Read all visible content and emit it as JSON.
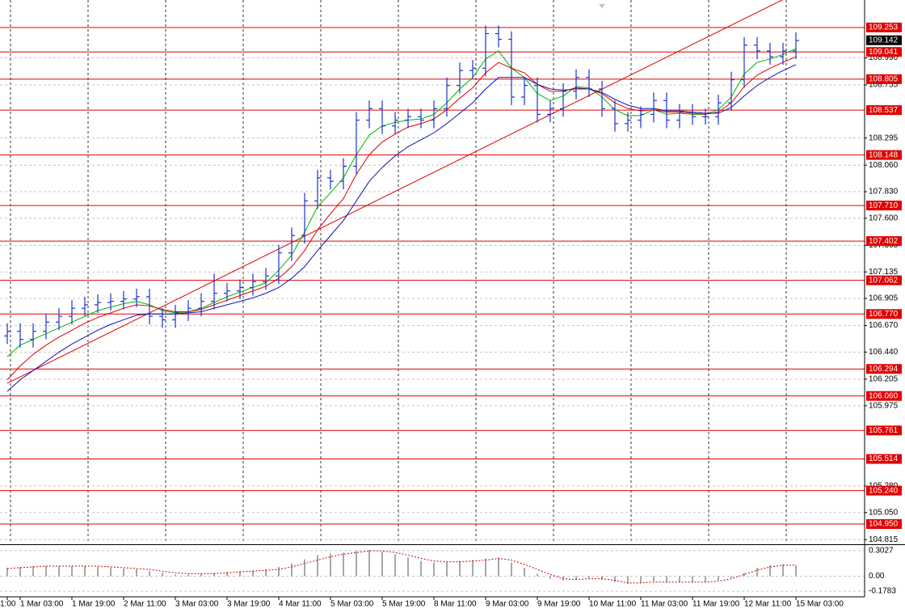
{
  "chart_data": {
    "type": "ohlc",
    "categories": [
      "1:00",
      "1 Mar 03:00",
      null,
      null,
      null,
      "1 Mar 19:00",
      null,
      null,
      null,
      "2 Mar 11:00",
      null,
      null,
      null,
      "3 Mar 03:00",
      null,
      null,
      null,
      "3 Mar 19:00",
      null,
      null,
      null,
      "4 Mar 11:00",
      null,
      null,
      null,
      "5 Mar 03:00",
      null,
      null,
      null,
      "5 Mar 19:00",
      null,
      null,
      null,
      "8 Mar 11:00",
      null,
      null,
      null,
      "9 Mar 03:00",
      null,
      null,
      null,
      "9 Mar 19:00",
      null,
      null,
      null,
      "10 Mar 11:00",
      null,
      null,
      null,
      "11 Mar 03:00",
      null,
      null,
      null,
      "11 Mar 19:00",
      null,
      null,
      null,
      "12 Mar 11:00",
      null,
      null,
      null,
      "15 Mar 03:00"
    ],
    "open": [
      106.58,
      106.62,
      106.55,
      106.62,
      106.7,
      106.75,
      106.82,
      106.85,
      106.87,
      106.88,
      106.9,
      106.92,
      106.75,
      106.72,
      106.78,
      106.82,
      106.88,
      106.95,
      106.97,
      107.0,
      107.05,
      107.1,
      107.3,
      107.45,
      107.75,
      107.95,
      107.92,
      108.05,
      108.45,
      108.55,
      108.4,
      108.45,
      108.48,
      108.45,
      108.55,
      108.75,
      108.88,
      108.9,
      109.2,
      109.15,
      108.65,
      108.75,
      108.5,
      108.55,
      108.7,
      108.82,
      108.72,
      108.55,
      108.42,
      108.45,
      108.5,
      108.62,
      108.45,
      108.52,
      108.48,
      108.48,
      108.6,
      108.8,
      109.1,
      109.05,
      109.0,
      109.05
    ],
    "high": [
      106.69,
      106.69,
      106.69,
      106.77,
      106.82,
      106.89,
      106.92,
      106.94,
      106.95,
      106.97,
      106.99,
      106.99,
      106.82,
      106.85,
      106.89,
      106.95,
      107.12,
      107.04,
      107.07,
      107.12,
      107.17,
      107.37,
      107.52,
      107.82,
      108.02,
      108.02,
      108.12,
      108.52,
      108.62,
      108.62,
      108.52,
      108.55,
      108.55,
      108.62,
      108.82,
      108.95,
      108.97,
      109.27,
      109.27,
      109.22,
      108.82,
      108.82,
      108.62,
      108.77,
      108.89,
      108.89,
      108.79,
      108.62,
      108.52,
      108.57,
      108.69,
      108.69,
      108.59,
      108.59,
      108.55,
      108.67,
      108.87,
      109.17,
      109.17,
      109.12,
      109.12,
      109.21
    ],
    "low": [
      106.51,
      106.48,
      106.48,
      106.55,
      106.63,
      106.68,
      106.75,
      106.78,
      106.8,
      106.81,
      106.83,
      106.68,
      106.65,
      106.65,
      106.71,
      106.75,
      106.81,
      106.88,
      106.9,
      106.93,
      106.98,
      107.03,
      107.23,
      107.38,
      107.68,
      107.85,
      107.85,
      107.98,
      108.38,
      108.33,
      108.33,
      108.38,
      108.38,
      108.38,
      108.48,
      108.68,
      108.81,
      108.83,
      109.08,
      108.58,
      108.58,
      108.43,
      108.43,
      108.48,
      108.63,
      108.65,
      108.48,
      108.35,
      108.35,
      108.38,
      108.43,
      108.38,
      108.38,
      108.41,
      108.41,
      108.41,
      108.53,
      108.73,
      108.98,
      108.93,
      108.93,
      108.98
    ],
    "close": [
      106.62,
      106.55,
      106.62,
      106.7,
      106.75,
      106.82,
      106.85,
      106.87,
      106.88,
      106.9,
      106.92,
      106.75,
      106.72,
      106.78,
      106.82,
      106.88,
      106.95,
      106.97,
      107.0,
      107.05,
      107.1,
      107.3,
      107.45,
      107.75,
      107.95,
      107.92,
      108.05,
      108.45,
      108.55,
      108.4,
      108.45,
      108.48,
      108.45,
      108.55,
      108.75,
      108.88,
      108.9,
      109.2,
      109.15,
      108.65,
      108.75,
      108.5,
      108.55,
      108.7,
      108.82,
      108.72,
      108.55,
      108.42,
      108.45,
      108.5,
      108.62,
      108.45,
      108.52,
      108.48,
      108.48,
      108.6,
      108.8,
      109.1,
      109.05,
      109.0,
      109.05,
      109.14
    ],
    "color": "#1b34c4",
    "ylim": [
      104.782,
      109.491
    ],
    "yticks": [
      {
        "value": 108.99,
        "label": "108.990"
      },
      108.755,
      108.295,
      {
        "value": 108.06,
        "label": "108.060"
      },
      {
        "value": 107.83,
        "label": "107.830"
      },
      {
        "value": 107.6,
        "label": "107.600"
      },
      107.365,
      107.135,
      106.905,
      {
        "value": 106.67,
        "label": "106.670"
      },
      {
        "value": 106.44,
        "label": "106.440"
      },
      106.205,
      105.975,
      {
        "value": 105.28,
        "label": "105.280"
      },
      {
        "value": 105.05,
        "label": "105.050"
      },
      104.815
    ],
    "grid": true,
    "series": [
      {
        "color": "#00b400",
        "values": [
          106.4,
          106.5,
          106.55,
          106.6,
          106.65,
          106.7,
          106.75,
          106.8,
          106.83,
          106.86,
          106.88,
          106.85,
          106.8,
          106.78,
          106.79,
          106.82,
          106.87,
          106.92,
          106.96,
          107.0,
          107.04,
          107.15,
          107.28,
          107.48,
          107.7,
          107.82,
          107.95,
          108.15,
          108.32,
          108.4,
          108.43,
          108.45,
          108.46,
          108.5,
          108.6,
          108.72,
          108.82,
          108.98,
          109.05,
          108.9,
          108.82,
          108.68,
          108.62,
          108.66,
          108.74,
          108.73,
          108.65,
          108.54,
          108.49,
          108.49,
          108.54,
          108.5,
          108.51,
          108.5,
          108.5,
          108.54,
          108.65,
          108.85,
          108.95,
          108.98,
          109.02,
          109.07
        ]
      },
      {
        "color": "#e00000",
        "values": [
          106.2,
          106.32,
          106.42,
          106.5,
          106.57,
          106.63,
          106.69,
          106.74,
          106.78,
          106.82,
          106.85,
          106.84,
          106.81,
          106.79,
          106.79,
          106.81,
          106.85,
          106.89,
          106.93,
          106.97,
          107.01,
          107.08,
          107.18,
          107.32,
          107.5,
          107.64,
          107.77,
          107.98,
          108.15,
          108.26,
          108.33,
          108.39,
          108.42,
          108.46,
          108.54,
          108.64,
          108.73,
          108.86,
          108.95,
          108.9,
          108.86,
          108.76,
          108.7,
          108.7,
          108.73,
          108.72,
          108.68,
          108.6,
          108.55,
          108.53,
          108.54,
          108.52,
          108.52,
          108.51,
          108.5,
          108.52,
          108.6,
          108.74,
          108.84,
          108.9,
          108.95,
          109.0
        ]
      },
      {
        "color": "#0a14b4",
        "values": [
          106.1,
          106.2,
          106.28,
          106.36,
          106.44,
          106.51,
          106.57,
          106.63,
          106.68,
          106.72,
          106.76,
          106.77,
          106.77,
          106.77,
          106.78,
          106.79,
          106.82,
          106.85,
          106.88,
          106.91,
          106.95,
          107.0,
          107.08,
          107.18,
          107.32,
          107.45,
          107.58,
          107.75,
          107.92,
          108.04,
          108.14,
          108.22,
          108.28,
          108.34,
          108.42,
          108.51,
          108.6,
          108.72,
          108.82,
          108.82,
          108.82,
          108.76,
          108.72,
          108.71,
          108.72,
          108.72,
          108.69,
          108.63,
          108.58,
          108.55,
          108.55,
          108.53,
          108.53,
          108.52,
          108.51,
          108.51,
          108.56,
          108.66,
          108.75,
          108.82,
          108.88,
          108.93
        ]
      }
    ],
    "trendline": {
      "color": "#e00000",
      "values": [
        106.17,
        109.55
      ]
    },
    "levels": {
      "color": "#e00000",
      "values": [
        109.253,
        109.041,
        108.805,
        108.537,
        108.148,
        {
          "value": 107.71,
          "label": "107.710"
        },
        107.402,
        107.062,
        {
          "value": 106.77,
          "label": "106.770"
        },
        106.294,
        {
          "value": 106.06,
          "label": "106.060"
        },
        105.761,
        105.514,
        {
          "value": 105.24,
          "label": "105.240"
        },
        {
          "value": 104.95,
          "label": "104.950"
        }
      ]
    },
    "current": 109.142,
    "indicator": {
      "type": "histogram",
      "color": "#a8a8a8",
      "values": [
        0.1,
        0.11,
        0.12,
        0.12,
        0.12,
        0.12,
        0.12,
        0.11,
        0.1,
        0.09,
        0.08,
        0.06,
        0.04,
        0.02,
        0.02,
        0.03,
        0.04,
        0.05,
        0.06,
        0.07,
        0.08,
        0.11,
        0.15,
        0.2,
        0.25,
        0.27,
        0.28,
        0.3,
        0.31,
        0.29,
        0.26,
        0.22,
        0.18,
        0.16,
        0.17,
        0.18,
        0.19,
        0.21,
        0.22,
        0.16,
        0.1,
        0.03,
        -0.03,
        -0.05,
        -0.04,
        -0.02,
        -0.04,
        -0.07,
        -0.09,
        -0.08,
        -0.06,
        -0.07,
        -0.07,
        -0.07,
        -0.07,
        -0.05,
        -0.02,
        0.04,
        0.1,
        0.13,
        0.14,
        0.13
      ],
      "signal": {
        "color": "#d00000",
        "values": [
          0.09,
          0.1,
          0.11,
          0.12,
          0.12,
          0.12,
          0.12,
          0.12,
          0.11,
          0.1,
          0.09,
          0.08,
          0.06,
          0.04,
          0.03,
          0.03,
          0.03,
          0.04,
          0.05,
          0.06,
          0.07,
          0.08,
          0.11,
          0.15,
          0.19,
          0.23,
          0.26,
          0.28,
          0.3,
          0.3,
          0.28,
          0.25,
          0.21,
          0.18,
          0.17,
          0.17,
          0.18,
          0.19,
          0.21,
          0.19,
          0.14,
          0.08,
          0.02,
          -0.03,
          -0.04,
          -0.03,
          -0.03,
          -0.05,
          -0.08,
          -0.08,
          -0.07,
          -0.07,
          -0.07,
          -0.07,
          -0.07,
          -0.06,
          -0.03,
          0.02,
          0.07,
          0.11,
          0.13,
          0.13
        ]
      },
      "ylim": [
        -0.235,
        0.359
      ],
      "yticks": [
        0.3027,
        {
          "value": 0,
          "label": "0.00"
        },
        -0.1783
      ]
    }
  }
}
